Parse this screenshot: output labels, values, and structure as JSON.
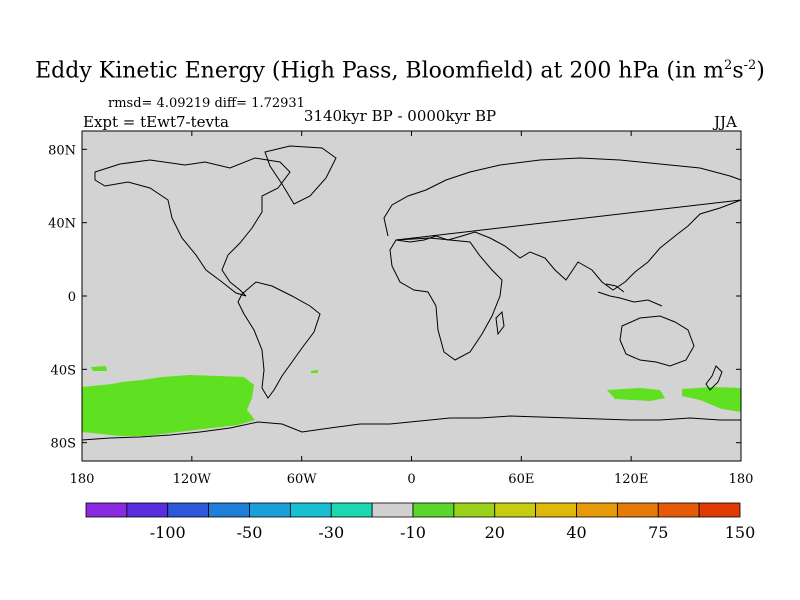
{
  "title": {
    "main": "Eddy Kinetic Energy (High Pass, Bloomfield) at 200 hPa (in m",
    "sup1": "2",
    "mid": "s",
    "sup2": "-2",
    "close": ")"
  },
  "stats": "rmsd= 4.09219 diff= 1.72931",
  "expt": "Expt = tEwt7-tevta",
  "period": "3140kyr BP - 0000kyr BP",
  "season": "JJA",
  "axes": {
    "lat_labels": [
      "80N",
      "40N",
      "0",
      "40S",
      "80S"
    ],
    "lat_values": [
      80,
      40,
      0,
      -40,
      -80
    ],
    "lon_labels": [
      "180",
      "120W",
      "60W",
      "0",
      "60E",
      "120E",
      "180"
    ],
    "lon_values": [
      -180,
      -120,
      -60,
      0,
      60,
      120,
      180
    ]
  },
  "colorbar": {
    "colors": [
      "#8a2be2",
      "#5a2ee0",
      "#2f57dc",
      "#1f7fd8",
      "#1aa0d8",
      "#18bfd0",
      "#1cd8b0",
      "#d0d0d0",
      "#5bd62a",
      "#9ad11a",
      "#c8cc10",
      "#e0b80a",
      "#e69a08",
      "#e67a06",
      "#e45a06",
      "#e03a06"
    ],
    "labels": [
      "-100",
      "-50",
      "-30",
      "-10",
      "20",
      "40",
      "75",
      "150"
    ]
  },
  "colors": {
    "background": "#d3d3d3",
    "positive": "#5fe020",
    "coast": "#000000"
  }
}
